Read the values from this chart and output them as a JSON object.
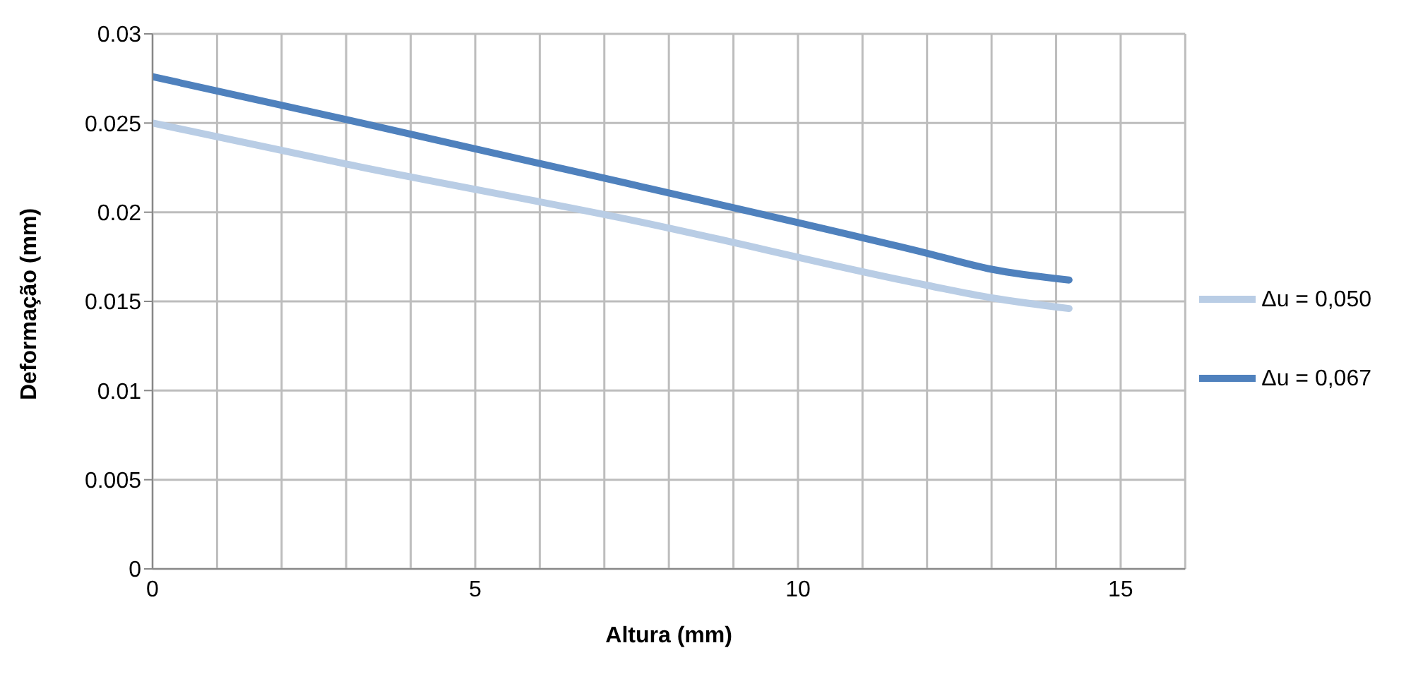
{
  "chart_data": {
    "type": "line",
    "xlabel": "Altura (mm)",
    "ylabel": "Deformação (mm)",
    "x": [
      0,
      3,
      7.5,
      12,
      13,
      14.2
    ],
    "series": [
      {
        "name": "Δu = 0,067",
        "color": "#4f81bd",
        "values": [
          0.0276,
          0.0252,
          0.0215,
          0.0177,
          0.0168,
          0.0162
        ]
      },
      {
        "name": "Δu = 0,050",
        "color": "#b9cde5",
        "values": [
          0.025,
          0.0227,
          0.0195,
          0.0159,
          0.0152,
          0.0146
        ]
      }
    ],
    "xlim": [
      0,
      16
    ],
    "xticks": [
      0,
      {
        "value": 1,
        "label": null
      },
      {
        "value": 2,
        "label": null
      },
      {
        "value": 3,
        "label": null
      },
      {
        "value": 4,
        "label": null
      },
      5,
      {
        "value": 6,
        "label": null
      },
      {
        "value": 7,
        "label": null
      },
      {
        "value": 8,
        "label": null
      },
      {
        "value": 9,
        "label": null
      },
      10,
      {
        "value": 11,
        "label": null
      },
      {
        "value": 12,
        "label": null
      },
      {
        "value": 13,
        "label": null
      },
      {
        "value": 14,
        "label": null
      },
      15,
      {
        "value": 16,
        "label": null
      }
    ],
    "ylim": [
      0,
      0.03
    ],
    "yticks": [
      0,
      0.005,
      0.01,
      0.015,
      0.02,
      0.025,
      0.03
    ],
    "grid": true,
    "legend": "right",
    "marker": "none",
    "line_style": "solid"
  }
}
